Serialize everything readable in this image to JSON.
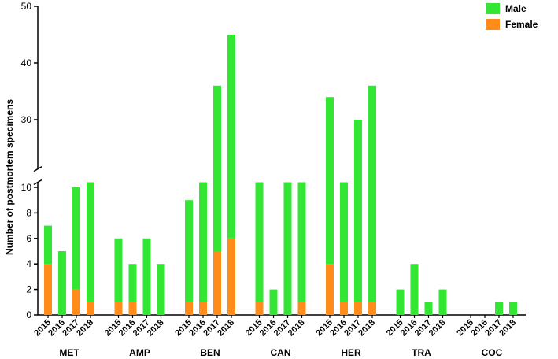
{
  "chart_data": {
    "type": "bar",
    "stacked": true,
    "ylabel": "Number of postmortem specimens",
    "groups": [
      "MET",
      "AMP",
      "BEN",
      "CAN",
      "HER",
      "TRA",
      "COC"
    ],
    "categories": [
      "2015",
      "2016",
      "2017",
      "2018",
      "2015",
      "2016",
      "2017",
      "2018",
      "2015",
      "2016",
      "2017",
      "2018",
      "2015",
      "2016",
      "2017",
      "2018",
      "2015",
      "2016",
      "2017",
      "2018",
      "2015",
      "2016",
      "2017",
      "2018",
      "2015",
      "2016",
      "2017",
      "2018"
    ],
    "series": [
      {
        "name": "Female",
        "color": "#ff8c1a",
        "values": [
          4,
          0,
          2,
          1,
          1,
          1,
          0,
          0,
          1,
          1,
          5,
          6,
          1,
          0,
          0,
          1,
          4,
          1,
          1,
          1,
          0,
          0,
          0,
          0,
          0,
          0,
          0,
          0
        ]
      },
      {
        "name": "Male",
        "color": "#33e633",
        "values": [
          3,
          5,
          8,
          10,
          5,
          3,
          6,
          4,
          8,
          10,
          31,
          39,
          10,
          2,
          11,
          10,
          30,
          10,
          29,
          35,
          2,
          4,
          1,
          2,
          0,
          0,
          1,
          1
        ]
      }
    ],
    "ylim": [
      0,
      50
    ],
    "ybreak": [
      10.4,
      21.3
    ],
    "yticks": [
      0,
      2,
      4,
      6,
      8,
      10,
      30,
      40,
      50
    ],
    "legend": "top-right"
  }
}
